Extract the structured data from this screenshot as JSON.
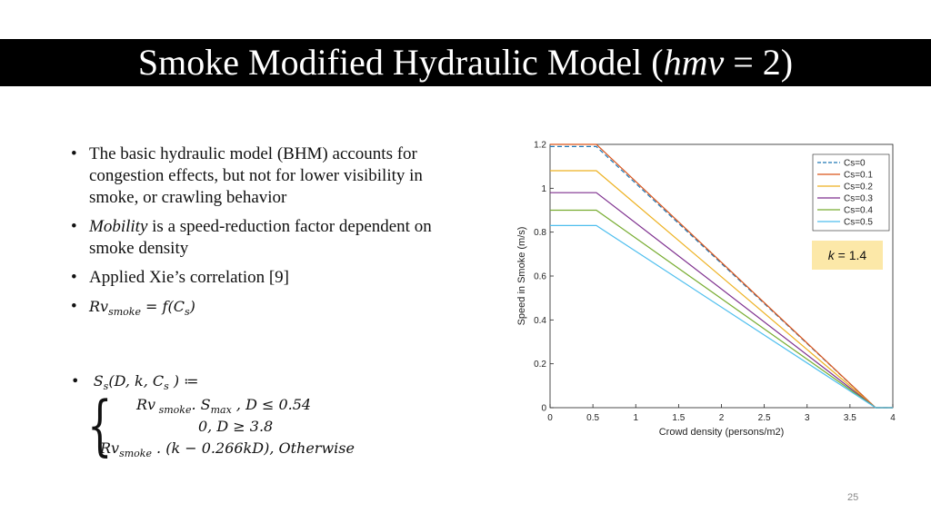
{
  "slide": {
    "title_prefix": "Smoke Modified Hydraulic Model (",
    "title_var": "hmv",
    "title_suffix": " = 2)",
    "page_number": "25"
  },
  "bullets": {
    "b1": "The basic hydraulic model (BHM) accounts for congestion effects, but not for lower visibility in smoke, or crawling behavior",
    "b2_italic": "Mobility",
    "b2_rest": " is a speed-reduction factor dependent on smoke density",
    "b3": "Applied Xie’s correlation [9]",
    "b4_lhs": "Rv",
    "b4_sub": "smoke",
    "b4_rhs": " = f(C",
    "b4_sub2": "s",
    "b4_end": ")"
  },
  "formula": {
    "lhs": "S",
    "lhs_sub": "s",
    "lhs_args": "(D, k, C",
    "lhs_args_sub": "s",
    "lhs_end": " ) ≔",
    "case1_a": "Rv",
    "case1_a_sub": " smoke",
    "case1_b": ". S",
    "case1_b_sub": "max",
    "case1_c": " ,  D ≤ 0.54",
    "case2": "0,  D ≥ 3.8",
    "case3_a": "Rv",
    "case3_a_sub": "smoke",
    "case3_b": " . (k − 0.266kD), Otherwise"
  },
  "annotation": {
    "k_var": "k",
    "k_rest": " = 1.4"
  },
  "chart_data": {
    "type": "line",
    "xlabel": "Crowd density (persons/m2)",
    "ylabel": "Speed in Smoke (m/s)",
    "xlim": [
      0,
      4
    ],
    "ylim": [
      0,
      1.2
    ],
    "xticks": [
      "0",
      "0.5",
      "1",
      "1.5",
      "2",
      "2.5",
      "3",
      "3.5",
      "4"
    ],
    "yticks": [
      "0",
      "0.2",
      "0.4",
      "0.6",
      "0.8",
      "1",
      "1.2"
    ],
    "legend_position": "top-right",
    "series": [
      {
        "name": "Cs=0",
        "color": "#1f77b4",
        "dashed": true,
        "x": [
          0,
          0.54,
          3.8,
          4
        ],
        "y": [
          1.19,
          1.19,
          0,
          0
        ]
      },
      {
        "name": "Cs=0.1",
        "color": "#d95319",
        "dashed": false,
        "x": [
          0,
          0.54,
          3.8,
          4
        ],
        "y": [
          1.2,
          1.2,
          0,
          0
        ]
      },
      {
        "name": "Cs=0.2",
        "color": "#edb120",
        "dashed": false,
        "x": [
          0,
          0.54,
          3.8,
          4
        ],
        "y": [
          1.08,
          1.08,
          0,
          0
        ]
      },
      {
        "name": "Cs=0.3",
        "color": "#7e2f8e",
        "dashed": false,
        "x": [
          0,
          0.54,
          3.8,
          4
        ],
        "y": [
          0.98,
          0.98,
          0,
          0
        ]
      },
      {
        "name": "Cs=0.4",
        "color": "#77ac30",
        "dashed": false,
        "x": [
          0,
          0.54,
          3.8,
          4
        ],
        "y": [
          0.9,
          0.9,
          0,
          0
        ]
      },
      {
        "name": "Cs=0.5",
        "color": "#4dbeee",
        "dashed": false,
        "x": [
          0,
          0.54,
          3.8,
          4
        ],
        "y": [
          0.83,
          0.83,
          0,
          0
        ]
      }
    ]
  }
}
